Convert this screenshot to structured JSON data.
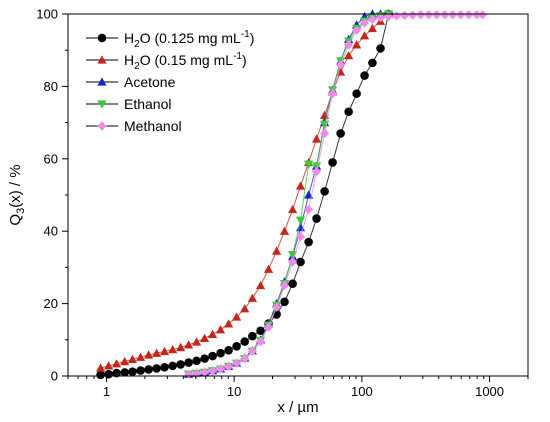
{
  "chart_data": {
    "type": "line",
    "xscale": "log",
    "xlabel": "x / µm",
    "ylabel": "Q3(x) / %",
    "ylabel_parts": {
      "base": "Q",
      "sub": "3",
      "rest": "(x) / %"
    },
    "xlim": [
      0.5,
      2000
    ],
    "ylim": [
      0,
      100
    ],
    "xticks": [
      1,
      10,
      100,
      1000
    ],
    "xtick_labels": [
      "1",
      "10",
      "100",
      "1000"
    ],
    "yticks": [
      0,
      20,
      40,
      60,
      80,
      100
    ],
    "ytick_labels": [
      "0",
      "20",
      "40",
      "60",
      "80",
      "100"
    ],
    "legend_position": "top-left",
    "series": [
      {
        "name": "H2O (0.125 mg mL-1)",
        "legend": {
          "base": "H",
          "sub": "2",
          "mid": "O (0.125 mg mL",
          "sup": "-1",
          "end": ")"
        },
        "color": "#000000",
        "marker": "circle",
        "x": [
          0.9,
          1.04,
          1.2,
          1.39,
          1.6,
          1.85,
          2.14,
          2.47,
          2.85,
          3.3,
          3.81,
          4.4,
          5.08,
          5.87,
          6.78,
          7.83,
          9.05,
          10.45,
          12.1,
          13.9,
          16.1,
          18.6,
          21.5,
          24.8,
          28.7,
          33.1,
          38.3,
          44.2,
          51.1,
          59.0,
          68.2,
          78.8,
          91.0,
          105,
          121,
          140,
          162
        ],
        "y": [
          0.3,
          0.5,
          0.8,
          1.0,
          1.2,
          1.5,
          1.8,
          2.1,
          2.4,
          2.8,
          3.2,
          3.7,
          4.2,
          4.8,
          5.5,
          6.3,
          7.1,
          8.2,
          9.5,
          11.0,
          12.5,
          14.5,
          17.0,
          20.5,
          25.5,
          31.5,
          37.0,
          43.5,
          51.0,
          59.0,
          67.0,
          73.0,
          78.0,
          83.0,
          86.5,
          90.5,
          100
        ]
      },
      {
        "name": "H2O (0.15 mg mL-1)",
        "legend": {
          "base": "H",
          "sub": "2",
          "mid": "O (0.15 mg mL",
          "sup": "-1",
          "end": ")"
        },
        "color": "#c0281e",
        "marker": "triangle-up",
        "x": [
          0.9,
          1.04,
          1.2,
          1.39,
          1.6,
          1.85,
          2.14,
          2.47,
          2.85,
          3.3,
          3.81,
          4.4,
          5.08,
          5.87,
          6.78,
          7.83,
          9.05,
          10.45,
          12.1,
          13.9,
          16.1,
          18.6,
          21.5,
          24.8,
          28.7,
          33.1,
          38.3,
          44.2,
          51.1,
          59.0,
          68.2,
          78.8,
          91.0,
          105,
          121,
          140,
          162
        ],
        "y": [
          2.2,
          2.8,
          3.4,
          4.0,
          4.6,
          5.2,
          5.8,
          6.3,
          6.8,
          7.3,
          7.9,
          8.6,
          9.4,
          10.4,
          11.5,
          12.8,
          14.4,
          16.3,
          18.6,
          21.5,
          25.0,
          29.5,
          34.5,
          40.0,
          46.0,
          52.5,
          59.0,
          65.5,
          72.0,
          78.5,
          84.0,
          88.5,
          91.5,
          94.0,
          96.0,
          98.0,
          100
        ]
      },
      {
        "name": "Acetone",
        "color": "#1428c8",
        "marker": "triangle-up",
        "x": [
          4.4,
          5.08,
          5.87,
          6.78,
          7.83,
          9.05,
          10.45,
          12.1,
          13.9,
          16.1,
          18.6,
          21.5,
          24.8,
          28.7,
          33.1,
          38.3,
          44.2,
          51.1,
          59.0,
          68.2,
          78.8,
          91.0,
          105,
          121,
          140,
          162
        ],
        "y": [
          0.5,
          0.8,
          1.1,
          1.5,
          2.0,
          2.7,
          3.6,
          5.0,
          7.0,
          10.0,
          14.5,
          20.0,
          26.0,
          33.0,
          41.0,
          50.0,
          58.0,
          70.0,
          79.0,
          87.0,
          93.0,
          97.0,
          99.3,
          100,
          100,
          100
        ]
      },
      {
        "name": "Ethanol",
        "color": "#3cc83c",
        "marker": "triangle-down",
        "x": [
          4.4,
          5.08,
          5.87,
          6.78,
          7.83,
          9.05,
          10.45,
          12.1,
          13.9,
          16.1,
          18.6,
          21.5,
          24.8,
          28.7,
          33.1,
          38.3,
          44.2,
          51.1,
          59.0,
          68.2,
          78.8,
          91.0,
          105,
          121,
          140,
          162
        ],
        "y": [
          0.5,
          0.7,
          1.0,
          1.4,
          1.9,
          2.6,
          3.5,
          4.8,
          6.8,
          9.8,
          14.0,
          19.5,
          25.5,
          33.5,
          43.0,
          58.5,
          58.0,
          69.5,
          79.0,
          87.0,
          92.5,
          96.0,
          98.0,
          99.0,
          99.5,
          100
        ]
      },
      {
        "name": "Methanol",
        "color": "#f08ce8",
        "marker": "diamond",
        "x": [
          4.4,
          5.08,
          5.87,
          6.78,
          7.83,
          9.05,
          10.45,
          12.1,
          13.9,
          16.1,
          18.6,
          21.5,
          24.8,
          28.7,
          33.1,
          38.3,
          44.2,
          51.1,
          59.0,
          68.2,
          78.8,
          91.0,
          105,
          121,
          140,
          162,
          187,
          216,
          250,
          289,
          334,
          386,
          446,
          515,
          595,
          687,
          794,
          880
        ],
        "y": [
          0.5,
          0.7,
          1.0,
          1.4,
          1.9,
          2.6,
          3.5,
          4.8,
          6.8,
          9.5,
          13.5,
          19.0,
          25.0,
          31.5,
          38.5,
          46.0,
          56.5,
          67.0,
          78.0,
          86.0,
          91.5,
          95.5,
          97.5,
          98.5,
          99.0,
          99.3,
          99.5,
          99.6,
          99.7,
          99.8,
          99.8,
          99.8,
          99.8,
          99.8,
          99.8,
          99.8,
          99.8,
          99.8
        ]
      }
    ]
  }
}
